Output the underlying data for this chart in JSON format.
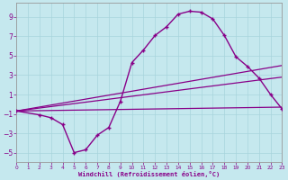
{
  "xlabel": "Windchill (Refroidissement éolien,°C)",
  "background_color": "#c5e8ee",
  "grid_color": "#a8d4dc",
  "line_color": "#880088",
  "xlim": [
    0,
    23
  ],
  "ylim": [
    -6,
    10.5
  ],
  "xticks": [
    0,
    1,
    2,
    3,
    4,
    5,
    6,
    7,
    8,
    9,
    10,
    11,
    12,
    13,
    14,
    15,
    16,
    17,
    18,
    19,
    20,
    21,
    22,
    23
  ],
  "yticks": [
    -5,
    -3,
    -1,
    1,
    3,
    5,
    7,
    9
  ],
  "curve_x": [
    0,
    2,
    3,
    4,
    5,
    6,
    7,
    8,
    9,
    10,
    11,
    12,
    13,
    14,
    15,
    16,
    17,
    18,
    19,
    20,
    21,
    22,
    23
  ],
  "curve_y": [
    -0.7,
    -1.1,
    -1.4,
    -2.1,
    -5.0,
    -4.7,
    -3.2,
    -2.4,
    0.3,
    4.3,
    5.6,
    7.1,
    8.0,
    9.3,
    9.6,
    9.5,
    8.8,
    7.1,
    4.9,
    3.9,
    2.7,
    1.0,
    -0.5
  ],
  "line1_x": [
    0,
    23
  ],
  "line1_y": [
    -0.7,
    4.0
  ],
  "line2_x": [
    0,
    23
  ],
  "line2_y": [
    -0.7,
    2.8
  ],
  "line3_x": [
    0,
    23
  ],
  "line3_y": [
    -0.7,
    -0.3
  ]
}
